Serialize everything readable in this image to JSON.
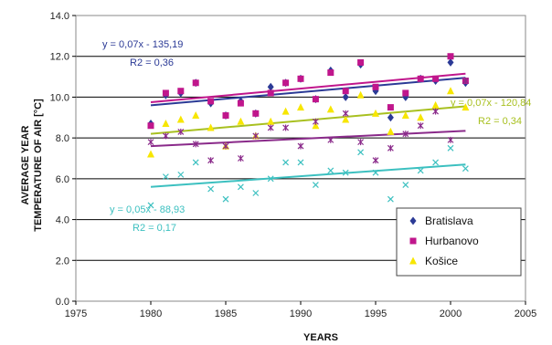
{
  "chart_data": {
    "type": "scatter",
    "xlabel": "YEARS",
    "ylabel_lines": [
      "AVERAGE YEAR",
      "TEMPERATURE OF AIR [°C]"
    ],
    "xlim": [
      1975,
      2005
    ],
    "ylim": [
      0,
      14
    ],
    "xticks": [
      1975,
      1980,
      1985,
      1990,
      1995,
      2000,
      2005
    ],
    "yticks": [
      0.0,
      2.0,
      4.0,
      6.0,
      8.0,
      10.0,
      12.0,
      14.0
    ],
    "ytick_labels": [
      "0.0",
      "2.0",
      "4.0",
      "6.0",
      "8.0",
      "10.0",
      "12.0",
      "14.0"
    ],
    "grid": "horizontal",
    "legend_position": "bottom-right",
    "series": [
      {
        "name": "Bratislava",
        "marker": "diamond",
        "color": "#2b3a96",
        "points": [
          [
            1980,
            8.7
          ],
          [
            1981,
            10.1
          ],
          [
            1982,
            10.2
          ],
          [
            1983,
            10.7
          ],
          [
            1984,
            9.7
          ],
          [
            1985,
            9.1
          ],
          [
            1986,
            9.8
          ],
          [
            1987,
            9.2
          ],
          [
            1988,
            10.5
          ],
          [
            1989,
            10.7
          ],
          [
            1990,
            10.9
          ],
          [
            1991,
            9.9
          ],
          [
            1992,
            11.3
          ],
          [
            1993,
            10.0
          ],
          [
            1994,
            11.6
          ],
          [
            1995,
            10.3
          ],
          [
            1996,
            9.0
          ],
          [
            1997,
            10.0
          ],
          [
            1998,
            10.9
          ],
          [
            1999,
            10.8
          ],
          [
            2000,
            11.7
          ],
          [
            2001,
            10.7
          ]
        ]
      },
      {
        "name": "Hurbanovo",
        "marker": "square",
        "color": "#c0168c",
        "points": [
          [
            1980,
            8.6
          ],
          [
            1981,
            10.2
          ],
          [
            1982,
            10.3
          ],
          [
            1983,
            10.7
          ],
          [
            1984,
            9.8
          ],
          [
            1985,
            9.1
          ],
          [
            1986,
            9.7
          ],
          [
            1987,
            9.2
          ],
          [
            1988,
            10.2
          ],
          [
            1989,
            10.7
          ],
          [
            1990,
            10.9
          ],
          [
            1991,
            9.9
          ],
          [
            1992,
            11.2
          ],
          [
            1993,
            10.3
          ],
          [
            1994,
            11.7
          ],
          [
            1995,
            10.5
          ],
          [
            1996,
            9.5
          ],
          [
            1997,
            10.2
          ],
          [
            1998,
            10.9
          ],
          [
            1999,
            10.9
          ],
          [
            2000,
            12.0
          ],
          [
            2001,
            10.8
          ]
        ]
      },
      {
        "name": "Košice",
        "marker": "triangle",
        "color": "#f7e600",
        "points": [
          [
            1980,
            7.2
          ],
          [
            1981,
            8.7
          ],
          [
            1982,
            8.9
          ],
          [
            1983,
            9.1
          ],
          [
            1984,
            8.5
          ],
          [
            1985,
            7.6
          ],
          [
            1986,
            8.8
          ],
          [
            1987,
            8.1
          ],
          [
            1988,
            8.8
          ],
          [
            1989,
            9.3
          ],
          [
            1990,
            9.5
          ],
          [
            1991,
            8.6
          ],
          [
            1992,
            9.4
          ],
          [
            1993,
            8.9
          ],
          [
            1994,
            10.1
          ],
          [
            1995,
            9.2
          ],
          [
            1996,
            8.3
          ],
          [
            1997,
            9.1
          ],
          [
            1998,
            9.0
          ],
          [
            1999,
            9.6
          ],
          [
            2000,
            10.3
          ],
          [
            2001,
            9.5
          ]
        ]
      },
      {
        "marker": "asterisk",
        "color": "#8a2a8a",
        "points": [
          [
            1980,
            7.8
          ],
          [
            1981,
            8.1
          ],
          [
            1982,
            8.3
          ],
          [
            1983,
            7.7
          ],
          [
            1984,
            6.9
          ],
          [
            1985,
            7.6
          ],
          [
            1986,
            7.0
          ],
          [
            1987,
            8.1
          ],
          [
            1988,
            8.5
          ],
          [
            1989,
            8.5
          ],
          [
            1990,
            7.6
          ],
          [
            1991,
            8.8
          ],
          [
            1992,
            7.9
          ],
          [
            1993,
            9.2
          ],
          [
            1994,
            7.8
          ],
          [
            1995,
            6.9
          ],
          [
            1996,
            7.5
          ],
          [
            1997,
            8.2
          ],
          [
            1998,
            8.6
          ],
          [
            1999,
            9.3
          ],
          [
            2000,
            7.9
          ],
          [
            2001,
            10.8
          ]
        ]
      },
      {
        "marker": "x",
        "color": "#3cc0c0",
        "points": [
          [
            1980,
            4.7
          ],
          [
            1981,
            6.1
          ],
          [
            1982,
            6.2
          ],
          [
            1983,
            6.8
          ],
          [
            1984,
            5.5
          ],
          [
            1985,
            5.0
          ],
          [
            1986,
            5.6
          ],
          [
            1987,
            5.3
          ],
          [
            1988,
            6.0
          ],
          [
            1989,
            6.8
          ],
          [
            1990,
            6.8
          ],
          [
            1991,
            5.7
          ],
          [
            1992,
            6.4
          ],
          [
            1993,
            6.3
          ],
          [
            1994,
            7.3
          ],
          [
            1995,
            6.3
          ],
          [
            1996,
            5.0
          ],
          [
            1997,
            5.7
          ],
          [
            1998,
            6.4
          ],
          [
            1999,
            6.8
          ],
          [
            2000,
            7.5
          ],
          [
            2001,
            6.5
          ]
        ]
      }
    ],
    "trendlines": [
      {
        "color": "#2b3a96",
        "x": [
          1980,
          2001
        ],
        "y": [
          9.6,
          10.95
        ],
        "label_lines": [
          "y = 0,07x - 135,19",
          "R2 = 0,36"
        ]
      },
      {
        "color": "#c0168c",
        "x": [
          1980,
          2001
        ],
        "y": [
          9.75,
          11.15
        ],
        "label_lines": []
      },
      {
        "color": "#a8c020",
        "x": [
          1980,
          2001
        ],
        "y": [
          8.2,
          9.55
        ],
        "label_lines": [
          "y = 0,07x - 120,84",
          "R2 = 0,34"
        ]
      },
      {
        "color": "#8a2a8a",
        "x": [
          1980,
          2001
        ],
        "y": [
          7.6,
          8.35
        ],
        "label_lines": []
      },
      {
        "color": "#3cc0c0",
        "x": [
          1980,
          2001
        ],
        "y": [
          5.6,
          6.7
        ],
        "label_lines": [
          "y = 0,05x - 88,93",
          "R2 = 0,17"
        ]
      }
    ]
  }
}
